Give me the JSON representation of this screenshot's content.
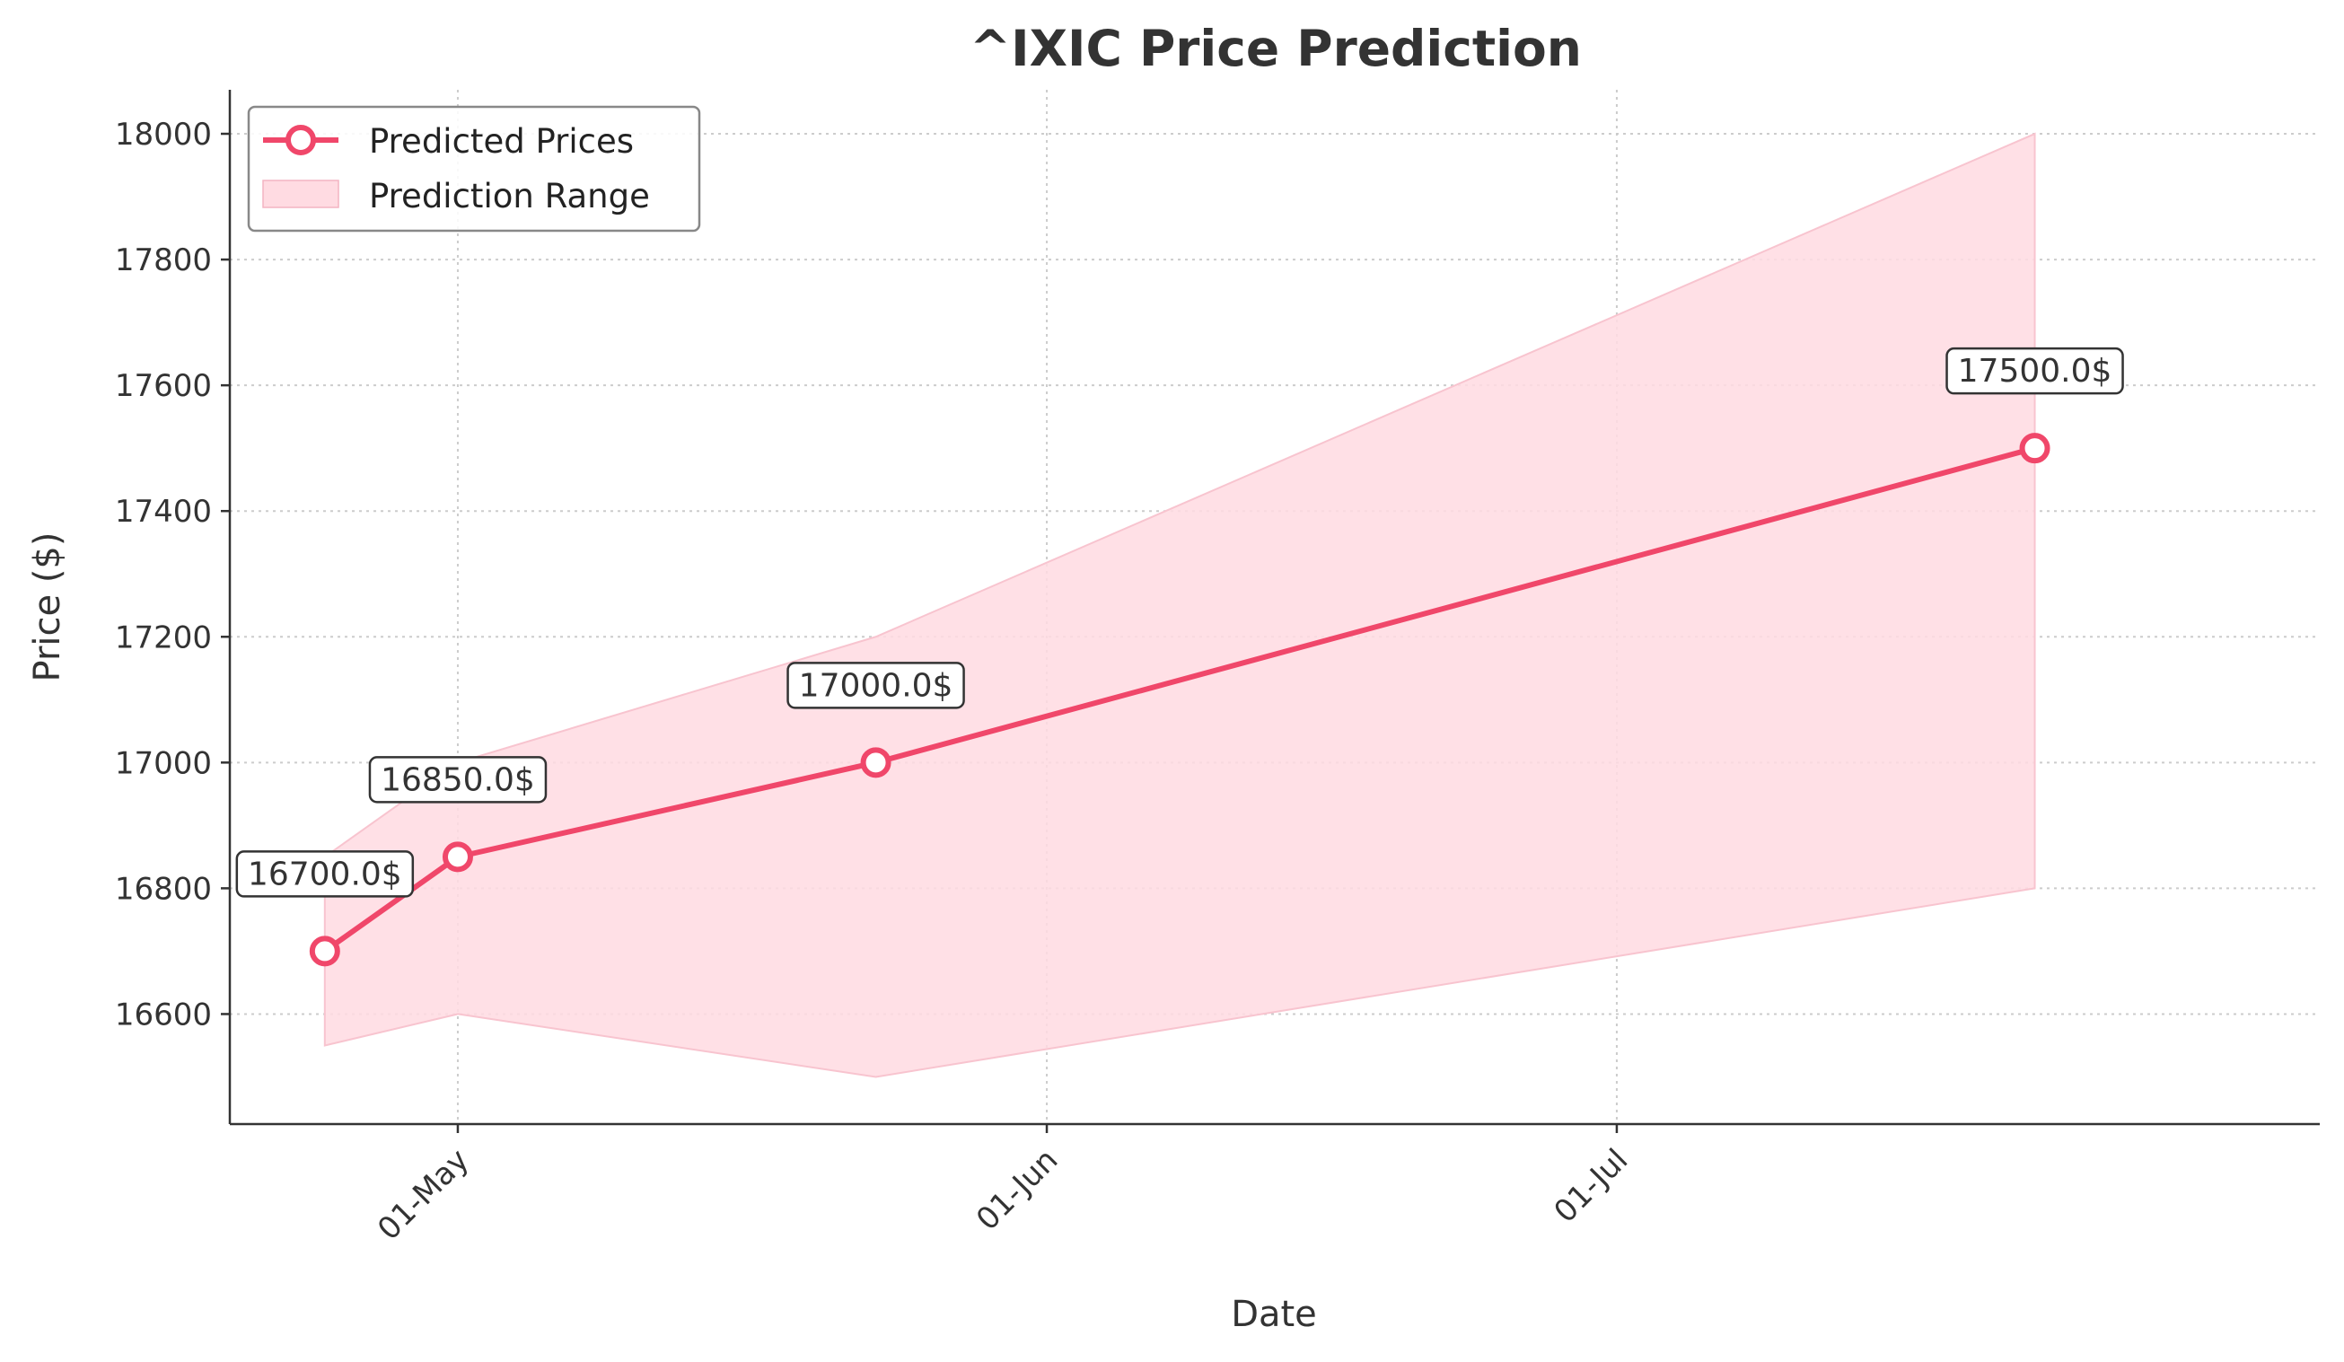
{
  "chart_data": {
    "type": "line",
    "title": "^IXIC Price Prediction",
    "xlabel": "Date",
    "ylabel": "Price ($)",
    "x_ticks": [
      {
        "date": "2024-05-01",
        "label": "01-May"
      },
      {
        "date": "2024-06-01",
        "label": "01-Jun"
      },
      {
        "date": "2024-07-01",
        "label": "01-Jul"
      }
    ],
    "y_ticks": [
      16600,
      16800,
      17000,
      17200,
      17400,
      17600,
      17800,
      18000
    ],
    "xlim": [
      "2024-04-19",
      "2024-08-07"
    ],
    "ylim": [
      16425,
      18070
    ],
    "grid": true,
    "legend_position": "top-left",
    "series": [
      {
        "name": "Predicted Prices",
        "color": "#f0476a",
        "points": [
          {
            "date": "2024-04-24",
            "value": 16700,
            "label": "16700.0$"
          },
          {
            "date": "2024-05-01",
            "value": 16850,
            "label": "16850.0$"
          },
          {
            "date": "2024-05-23",
            "value": 17000,
            "label": "17000.0$"
          },
          {
            "date": "2024-07-23",
            "value": 17500,
            "label": "17500.0$"
          }
        ]
      }
    ],
    "range": {
      "name": "Prediction Range",
      "color": "#ffdbe2",
      "points": [
        {
          "date": "2024-04-24",
          "low": 16550,
          "high": 16850
        },
        {
          "date": "2024-05-01",
          "low": 16600,
          "high": 17000
        },
        {
          "date": "2024-05-23",
          "low": 16500,
          "high": 17200
        },
        {
          "date": "2024-07-23",
          "low": 16800,
          "high": 18000
        }
      ]
    }
  }
}
